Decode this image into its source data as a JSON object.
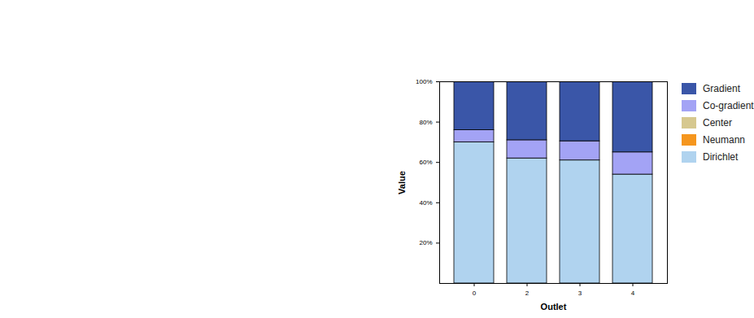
{
  "chart_data": {
    "type": "bar",
    "stacked": true,
    "x_label": "Outlet",
    "y_label": "Value",
    "categories": [
      "0",
      "2",
      "3",
      "4"
    ],
    "series": [
      {
        "name": "Gradient",
        "color": "#3a56a8",
        "values": [
          24,
          29,
          29.5,
          35
        ]
      },
      {
        "name": "Co-gradient",
        "color": "#a3a3f5",
        "values": [
          6,
          9,
          9.5,
          11
        ]
      },
      {
        "name": "Center",
        "color": "#d6c88f",
        "values": [
          0,
          0,
          0,
          0
        ]
      },
      {
        "name": "Neumann",
        "color": "#f5961e",
        "values": [
          0,
          0,
          0,
          0
        ]
      },
      {
        "name": "Dirichlet",
        "color": "#b0d3ef",
        "values": [
          70,
          62,
          61,
          54
        ]
      }
    ],
    "ylim": [
      0,
      100
    ],
    "yticks": [
      {
        "value": 20,
        "label": "20%"
      },
      {
        "value": 40,
        "label": "40%"
      },
      {
        "value": 60,
        "label": "60%"
      },
      {
        "value": 80,
        "label": "80%"
      },
      {
        "value": 100,
        "label": "100%"
      }
    ],
    "legend": "right",
    "grid": false
  }
}
